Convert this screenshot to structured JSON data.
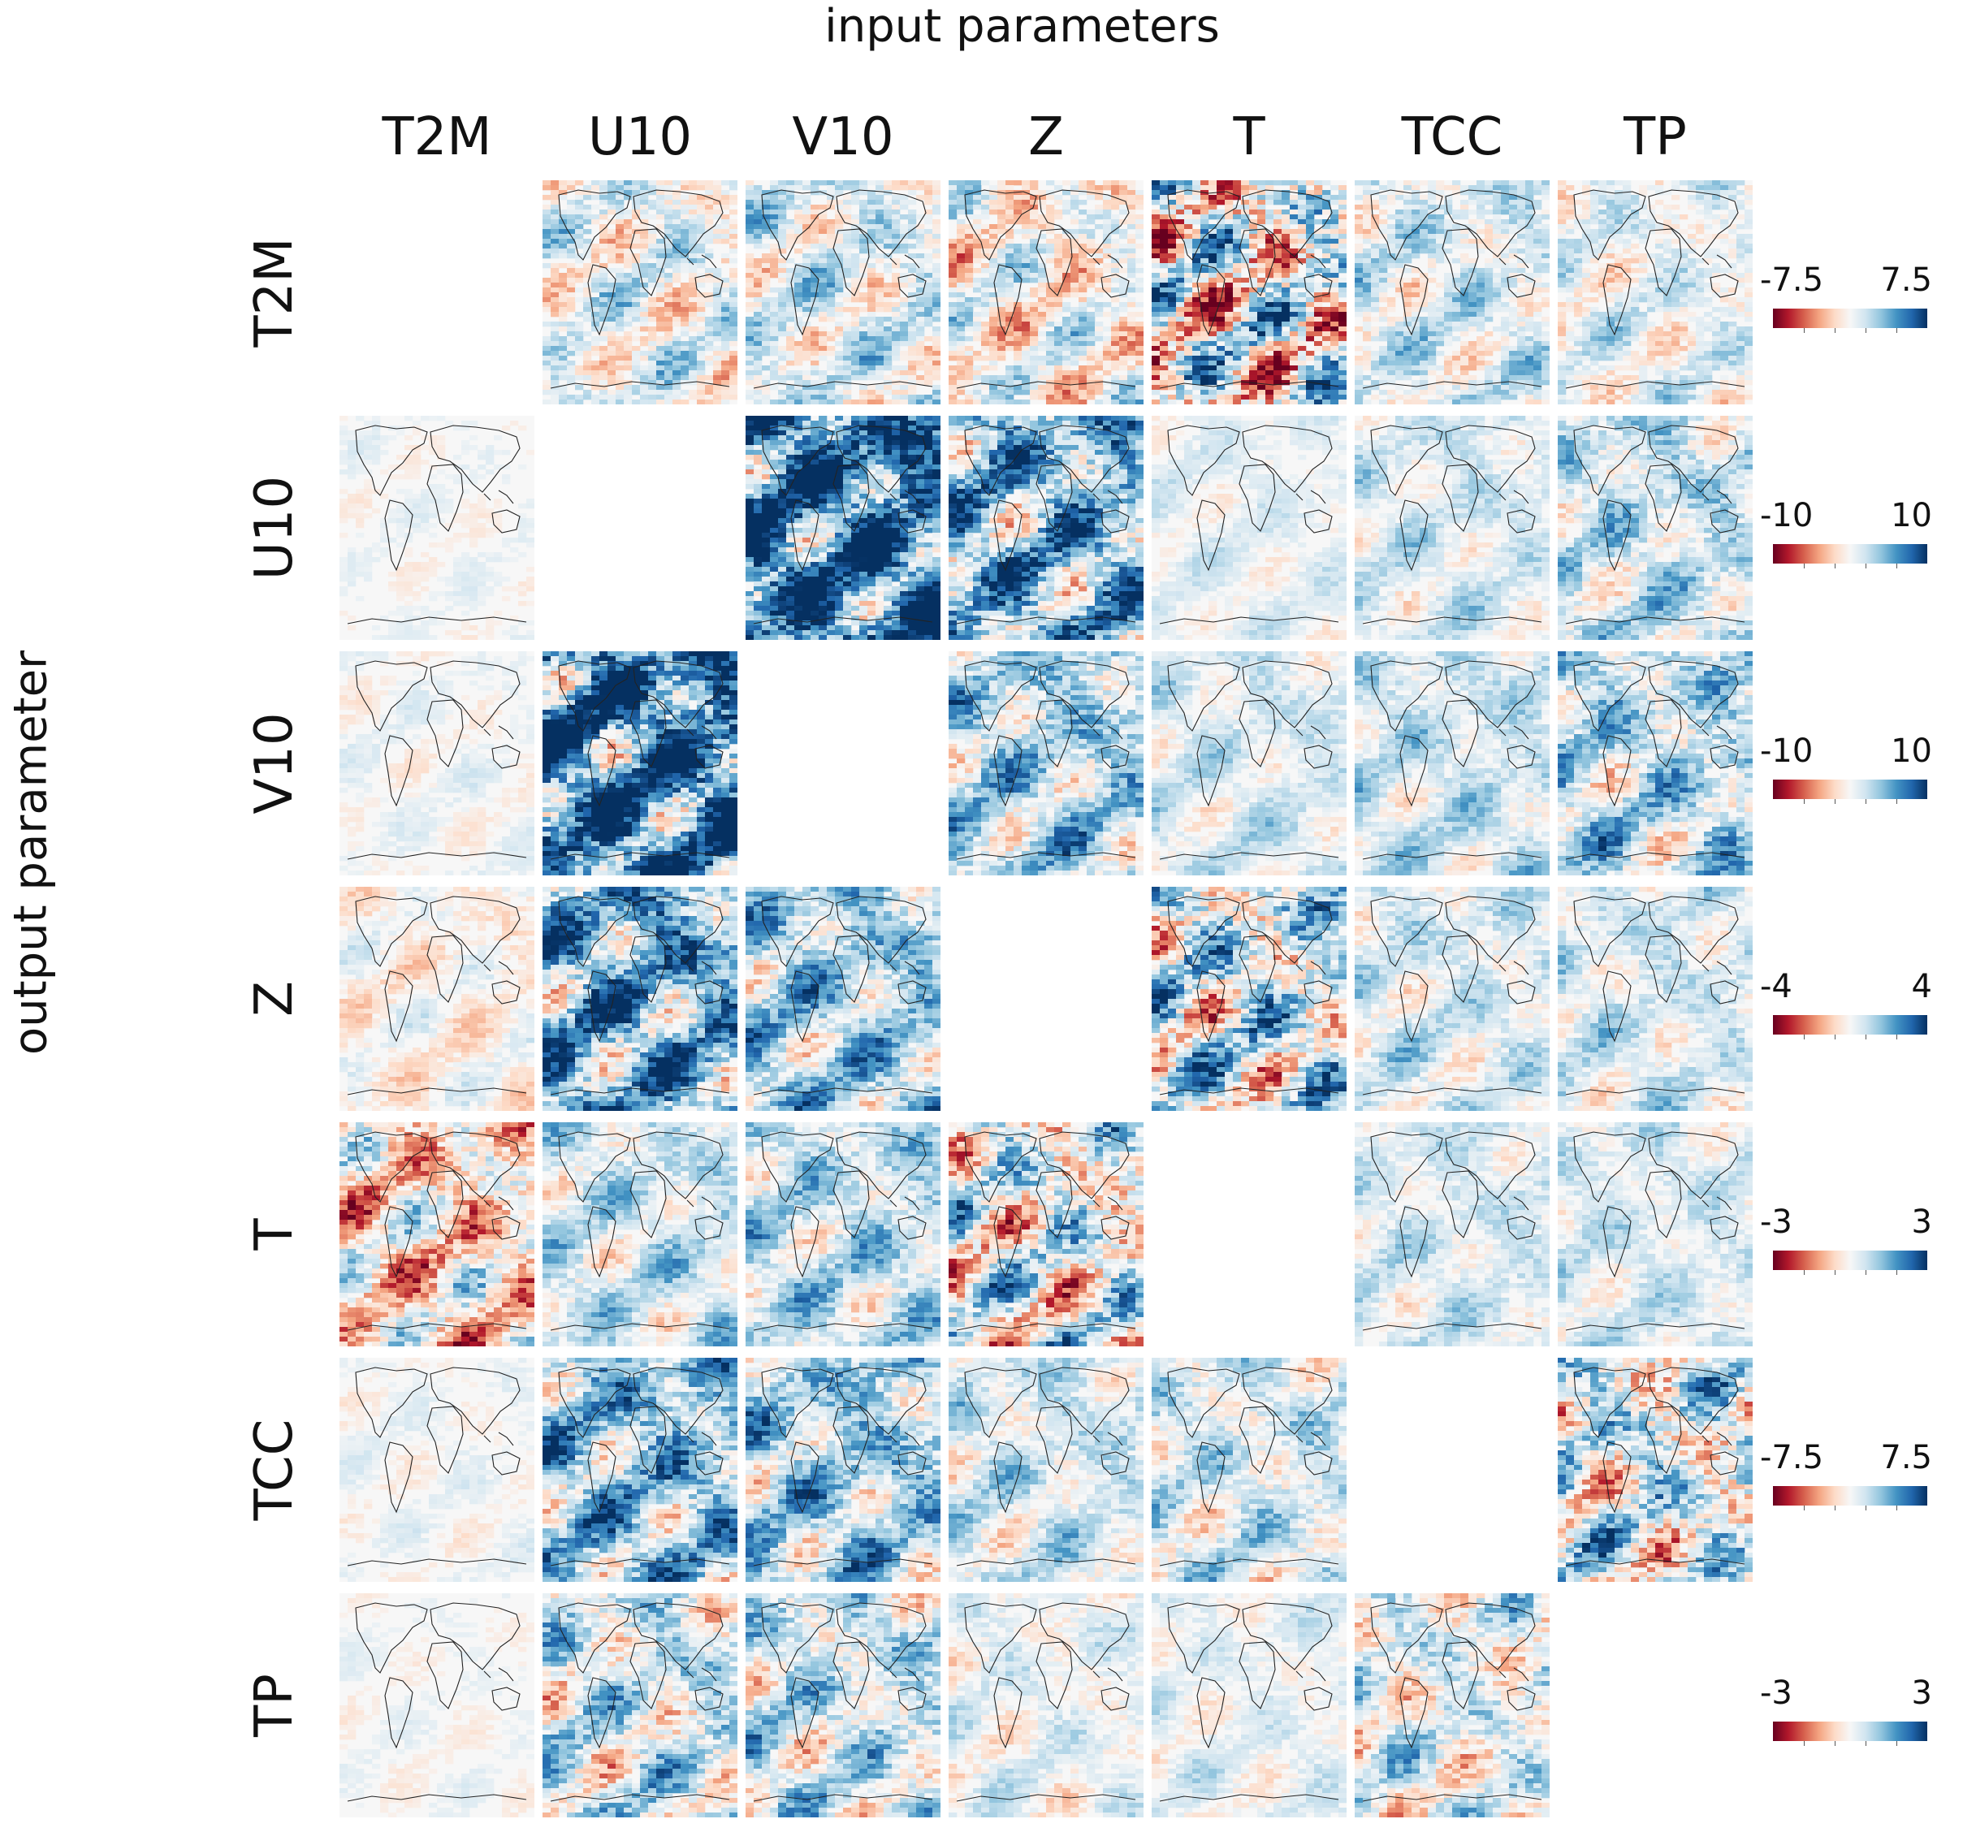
{
  "chart_data": {
    "type": "heatmap",
    "title": "input parameters",
    "xlabel": "input parameters",
    "ylabel": "output parameter",
    "columns": [
      "T2M",
      "U10",
      "V10",
      "Z",
      "T",
      "TCC",
      "TP"
    ],
    "rows": [
      "T2M",
      "U10",
      "V10",
      "Z",
      "T",
      "TCC",
      "TP"
    ],
    "cell_content": "world map",
    "colormap": [
      "#67001f",
      "#b2182b",
      "#d6604d",
      "#f4a582",
      "#fddbc7",
      "#f7f7f7",
      "#d1e5f0",
      "#92c5de",
      "#4393c3",
      "#2166ac",
      "#053061"
    ],
    "colorbars": [
      {
        "row": "T2M",
        "min_label": "-7.5",
        "max_label": "7.5",
        "vmin": -7.5,
        "vmax": 7.5
      },
      {
        "row": "U10",
        "min_label": "-10",
        "max_label": "10",
        "vmin": -10,
        "vmax": 10
      },
      {
        "row": "V10",
        "min_label": "-10",
        "max_label": "10",
        "vmin": -10,
        "vmax": 10
      },
      {
        "row": "Z",
        "min_label": "-4",
        "max_label": "4",
        "vmin": -4,
        "vmax": 4
      },
      {
        "row": "T",
        "min_label": "-3",
        "max_label": "3",
        "vmin": -3,
        "vmax": 3
      },
      {
        "row": "TCC",
        "min_label": "-7.5",
        "max_label": "7.5",
        "vmin": -7.5,
        "vmax": 7.5
      },
      {
        "row": "TP",
        "min_label": "-3",
        "max_label": "3",
        "vmin": -3,
        "vmax": 3
      }
    ],
    "panel_intensity": [
      [
        0.0,
        0.45,
        0.45,
        0.5,
        1.0,
        0.4,
        0.35
      ],
      [
        0.12,
        0.0,
        0.85,
        0.75,
        0.2,
        0.3,
        0.45
      ],
      [
        0.15,
        0.9,
        0.0,
        0.55,
        0.3,
        0.35,
        0.55
      ],
      [
        0.25,
        0.75,
        0.55,
        0.0,
        0.85,
        0.35,
        0.35
      ],
      [
        0.65,
        0.4,
        0.45,
        0.8,
        0.0,
        0.3,
        0.3
      ],
      [
        0.15,
        0.65,
        0.6,
        0.4,
        0.45,
        0.0,
        0.8
      ],
      [
        0.12,
        0.6,
        0.55,
        0.3,
        0.25,
        0.55,
        0.0
      ]
    ],
    "panel_bias": [
      [
        0,
        0.1,
        0.2,
        -0.05,
        0,
        0.25,
        0.15
      ],
      [
        0.1,
        0,
        0.65,
        0.45,
        0.3,
        0.35,
        0.35
      ],
      [
        0.1,
        0.6,
        0,
        0.4,
        0.35,
        0.4,
        0.35
      ],
      [
        -0.15,
        0.5,
        0.45,
        0,
        0.15,
        0.3,
        0.3
      ],
      [
        -0.2,
        0.35,
        0.4,
        0.05,
        0,
        0.35,
        0.35
      ],
      [
        0.1,
        0.45,
        0.4,
        0.3,
        0.25,
        0,
        0.1
      ],
      [
        0.05,
        0.2,
        0.25,
        0.15,
        0.2,
        0.1,
        0
      ]
    ]
  }
}
